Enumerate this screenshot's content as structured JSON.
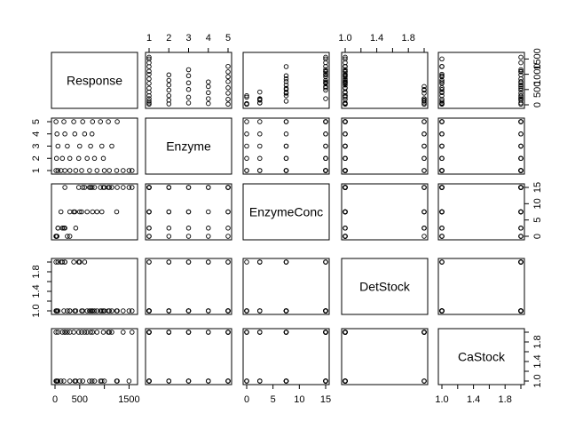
{
  "chart_data": {
    "type": "scatter",
    "title": "",
    "variables": [
      "Response",
      "Enzyme",
      "EnzymeConc",
      "DetStock",
      "CaStock"
    ],
    "axes": {
      "Response": {
        "range": [
          0,
          1600
        ],
        "ticks": [
          0,
          500,
          1000,
          1500
        ],
        "tick_labels": [
          "0",
          "500",
          "",
          "1500"
        ],
        "right_tick_labels": [
          "0",
          "500",
          "1000",
          "1500"
        ]
      },
      "Enzyme": {
        "range": [
          1,
          5
        ],
        "ticks": [
          1,
          2,
          3,
          4,
          5
        ],
        "tick_labels": [
          "1",
          "2",
          "3",
          "4",
          "5"
        ]
      },
      "EnzymeConc": {
        "range": [
          0,
          15
        ],
        "ticks": [
          0,
          5,
          10,
          15
        ],
        "tick_labels": [
          "0",
          "5",
          "10",
          "15"
        ]
      },
      "DetStock": {
        "range": [
          1,
          2
        ],
        "ticks": [
          1.0,
          1.2,
          1.4,
          1.6,
          1.8,
          2.0
        ],
        "tick_labels": [
          "1.0",
          "",
          "1.4",
          "",
          "1.8",
          ""
        ]
      },
      "CaStock": {
        "range": [
          1,
          2
        ],
        "ticks": [
          1.0,
          1.2,
          1.4,
          1.6,
          1.8,
          2.0
        ],
        "tick_labels": [
          "1.0",
          "",
          "1.4",
          "",
          "1.8",
          ""
        ]
      }
    },
    "observations": [
      {
        "Response": 20,
        "Enzyme": 1,
        "EnzymeConc": 0,
        "DetStock": 1,
        "CaStock": 1
      },
      {
        "Response": 60,
        "Enzyme": 1,
        "EnzymeConc": 2.5,
        "DetStock": 1,
        "CaStock": 2
      },
      {
        "Response": 120,
        "Enzyme": 1,
        "EnzymeConc": 7.5,
        "DetStock": 2,
        "CaStock": 1
      },
      {
        "Response": 200,
        "Enzyme": 1,
        "EnzymeConc": 15,
        "DetStock": 2,
        "CaStock": 2
      },
      {
        "Response": 300,
        "Enzyme": 1,
        "EnzymeConc": 0,
        "DetStock": 1,
        "CaStock": 2
      },
      {
        "Response": 420,
        "Enzyme": 1,
        "EnzymeConc": 2.5,
        "DetStock": 1,
        "CaStock": 1
      },
      {
        "Response": 540,
        "Enzyme": 1,
        "EnzymeConc": 7.5,
        "DetStock": 1,
        "CaStock": 2
      },
      {
        "Response": 700,
        "Enzyme": 1,
        "EnzymeConc": 15,
        "DetStock": 1,
        "CaStock": 1
      },
      {
        "Response": 850,
        "Enzyme": 1,
        "EnzymeConc": 7.5,
        "DetStock": 1,
        "CaStock": 2
      },
      {
        "Response": 1000,
        "Enzyme": 1,
        "EnzymeConc": 15,
        "DetStock": 1,
        "CaStock": 1
      },
      {
        "Response": 1100,
        "Enzyme": 1,
        "EnzymeConc": 15,
        "DetStock": 1,
        "CaStock": 2
      },
      {
        "Response": 1250,
        "Enzyme": 1,
        "EnzymeConc": 7.5,
        "DetStock": 1,
        "CaStock": 1
      },
      {
        "Response": 1380,
        "Enzyme": 1,
        "EnzymeConc": 15,
        "DetStock": 1,
        "CaStock": 2
      },
      {
        "Response": 1500,
        "Enzyme": 1,
        "EnzymeConc": 15,
        "DetStock": 1,
        "CaStock": 1
      },
      {
        "Response": 1560,
        "Enzyme": 1,
        "EnzymeConc": 15,
        "DetStock": 1,
        "CaStock": 2
      },
      {
        "Response": 30,
        "Enzyme": 2,
        "EnzymeConc": 0,
        "DetStock": 1,
        "CaStock": 1
      },
      {
        "Response": 150,
        "Enzyme": 2,
        "EnzymeConc": 2.5,
        "DetStock": 2,
        "CaStock": 2
      },
      {
        "Response": 300,
        "Enzyme": 2,
        "EnzymeConc": 7.5,
        "DetStock": 1,
        "CaStock": 1
      },
      {
        "Response": 480,
        "Enzyme": 2,
        "EnzymeConc": 15,
        "DetStock": 2,
        "CaStock": 2
      },
      {
        "Response": 650,
        "Enzyme": 2,
        "EnzymeConc": 7.5,
        "DetStock": 1,
        "CaStock": 2
      },
      {
        "Response": 800,
        "Enzyme": 2,
        "EnzymeConc": 15,
        "DetStock": 1,
        "CaStock": 1
      },
      {
        "Response": 980,
        "Enzyme": 2,
        "EnzymeConc": 15,
        "DetStock": 1,
        "CaStock": 2
      },
      {
        "Response": 60,
        "Enzyme": 3,
        "EnzymeConc": 2.5,
        "DetStock": 2,
        "CaStock": 1
      },
      {
        "Response": 250,
        "Enzyme": 3,
        "EnzymeConc": 0,
        "DetStock": 1,
        "CaStock": 2
      },
      {
        "Response": 500,
        "Enzyme": 3,
        "EnzymeConc": 7.5,
        "DetStock": 2,
        "CaStock": 1
      },
      {
        "Response": 720,
        "Enzyme": 3,
        "EnzymeConc": 15,
        "DetStock": 1,
        "CaStock": 2
      },
      {
        "Response": 950,
        "Enzyme": 3,
        "EnzymeConc": 7.5,
        "DetStock": 1,
        "CaStock": 1
      },
      {
        "Response": 1150,
        "Enzyme": 3,
        "EnzymeConc": 15,
        "DetStock": 1,
        "CaStock": 2
      },
      {
        "Response": 40,
        "Enzyme": 4,
        "EnzymeConc": 0,
        "DetStock": 1,
        "CaStock": 1
      },
      {
        "Response": 200,
        "Enzyme": 4,
        "EnzymeConc": 2.5,
        "DetStock": 2,
        "CaStock": 2
      },
      {
        "Response": 400,
        "Enzyme": 4,
        "EnzymeConc": 7.5,
        "DetStock": 1,
        "CaStock": 1
      },
      {
        "Response": 600,
        "Enzyme": 4,
        "EnzymeConc": 15,
        "DetStock": 2,
        "CaStock": 2
      },
      {
        "Response": 750,
        "Enzyme": 4,
        "EnzymeConc": 15,
        "DetStock": 1,
        "CaStock": 1
      },
      {
        "Response": 20,
        "Enzyme": 5,
        "EnzymeConc": 0,
        "DetStock": 2,
        "CaStock": 2
      },
      {
        "Response": 180,
        "Enzyme": 5,
        "EnzymeConc": 2.5,
        "DetStock": 1,
        "CaStock": 1
      },
      {
        "Response": 380,
        "Enzyme": 5,
        "EnzymeConc": 7.5,
        "DetStock": 2,
        "CaStock": 2
      },
      {
        "Response": 560,
        "Enzyme": 5,
        "EnzymeConc": 15,
        "DetStock": 1,
        "CaStock": 1
      },
      {
        "Response": 760,
        "Enzyme": 5,
        "EnzymeConc": 7.5,
        "DetStock": 1,
        "CaStock": 2
      },
      {
        "Response": 920,
        "Enzyme": 5,
        "EnzymeConc": 15,
        "DetStock": 1,
        "CaStock": 1
      },
      {
        "Response": 1080,
        "Enzyme": 5,
        "EnzymeConc": 15,
        "DetStock": 1,
        "CaStock": 2
      },
      {
        "Response": 1260,
        "Enzyme": 5,
        "EnzymeConc": 15,
        "DetStock": 1,
        "CaStock": 1
      }
    ],
    "grid": false,
    "legend": "none"
  }
}
